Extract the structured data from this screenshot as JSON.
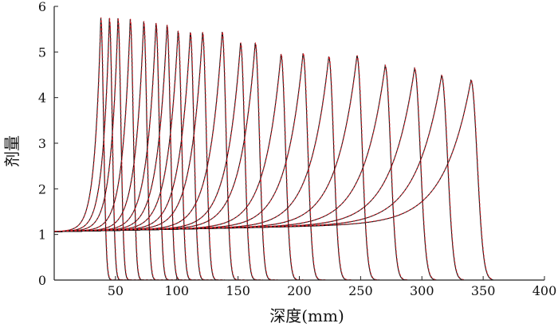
{
  "chart_data": {
    "type": "line",
    "title": "",
    "xlabel": "深度(mm)",
    "ylabel": "剂量",
    "xlim": [
      0,
      400
    ],
    "ylim": [
      0,
      6
    ],
    "xticks": [
      50,
      100,
      150,
      200,
      250,
      300,
      350,
      400
    ],
    "yticks": [
      0,
      1,
      2,
      3,
      4,
      5,
      6
    ],
    "grid": false,
    "legend": "none",
    "colors": {
      "measured": "#111111",
      "simulated": "#e0202a",
      "axis": "#222222"
    },
    "series": [
      {
        "peak_depth": 38,
        "peak_dose": 5.75
      },
      {
        "peak_depth": 45,
        "peak_dose": 5.74
      },
      {
        "peak_depth": 52,
        "peak_dose": 5.74
      },
      {
        "peak_depth": 62,
        "peak_dose": 5.72
      },
      {
        "peak_depth": 73,
        "peak_dose": 5.67
      },
      {
        "peak_depth": 83,
        "peak_dose": 5.63
      },
      {
        "peak_depth": 92,
        "peak_dose": 5.59
      },
      {
        "peak_depth": 101,
        "peak_dose": 5.46
      },
      {
        "peak_depth": 111,
        "peak_dose": 5.43
      },
      {
        "peak_depth": 121,
        "peak_dose": 5.43
      },
      {
        "peak_depth": 137,
        "peak_dose": 5.44
      },
      {
        "peak_depth": 152,
        "peak_dose": 5.2
      },
      {
        "peak_depth": 164,
        "peak_dose": 5.2
      },
      {
        "peak_depth": 185,
        "peak_dose": 4.95
      },
      {
        "peak_depth": 203,
        "peak_dose": 4.97
      },
      {
        "peak_depth": 224,
        "peak_dose": 4.9
      },
      {
        "peak_depth": 247,
        "peak_dose": 4.92
      },
      {
        "peak_depth": 270,
        "peak_dose": 4.7
      },
      {
        "peak_depth": 294,
        "peak_dose": 4.64
      },
      {
        "peak_depth": 316,
        "peak_dose": 4.48
      },
      {
        "peak_depth": 340,
        "peak_dose": 4.38
      }
    ]
  }
}
